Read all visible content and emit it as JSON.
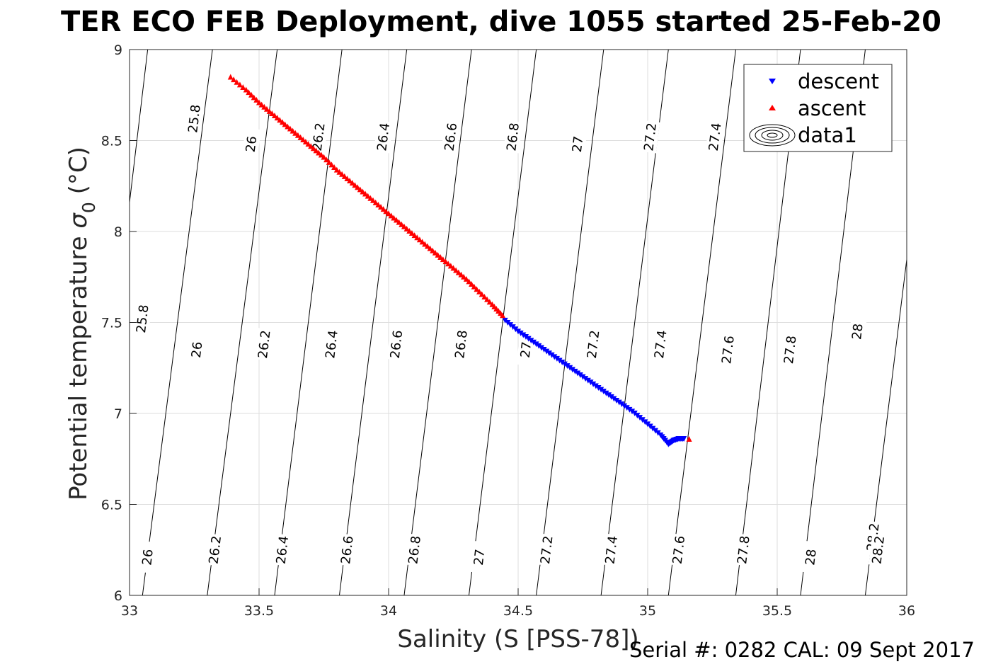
{
  "title": "TER ECO FEB Deployment, dive 1055 started 25-Feb-20",
  "footer": "Serial #: 0282  CAL: 09 Sept 2017",
  "chart_data": {
    "type": "scatter",
    "title": "TER ECO FEB Deployment, dive 1055 started 25-Feb-20",
    "xlabel": "Salinity (S [PSS-78])",
    "ylabel_main": "Potential temperature ",
    "ylabel_sigma": "σ",
    "ylabel_sub": "0",
    "ylabel_unit": " (°C)",
    "xlim": [
      33,
      36
    ],
    "ylim": [
      6,
      9
    ],
    "xticks": [
      "33",
      "33.5",
      "34",
      "34.5",
      "35",
      "35.5",
      "36"
    ],
    "yticks": [
      "6",
      "6.5",
      "7",
      "7.5",
      "8",
      "8.5",
      "9"
    ],
    "grid": true,
    "legend_position": "top-right",
    "colors": {
      "descent": "#0000ff",
      "ascent": "#ff0000",
      "contour": "#000000",
      "grid": "#dedede"
    },
    "series": [
      {
        "name": "descent",
        "marker": "triangle-down",
        "color": "#0000ff",
        "points": [
          [
            34.45,
            7.51
          ],
          [
            34.5,
            7.45
          ],
          [
            34.55,
            7.4
          ],
          [
            34.6,
            7.35
          ],
          [
            34.65,
            7.3
          ],
          [
            34.7,
            7.25
          ],
          [
            34.75,
            7.2
          ],
          [
            34.8,
            7.15
          ],
          [
            34.85,
            7.1
          ],
          [
            34.9,
            7.05
          ],
          [
            34.95,
            7.0
          ],
          [
            35.0,
            6.94
          ],
          [
            35.05,
            6.88
          ],
          [
            35.08,
            6.83
          ],
          [
            35.1,
            6.85
          ],
          [
            35.12,
            6.86
          ],
          [
            35.14,
            6.86
          ]
        ]
      },
      {
        "name": "ascent",
        "marker": "triangle-up",
        "color": "#ff0000",
        "points": [
          [
            33.39,
            8.85
          ],
          [
            33.45,
            8.78
          ],
          [
            33.5,
            8.71
          ],
          [
            33.55,
            8.65
          ],
          [
            33.6,
            8.59
          ],
          [
            33.65,
            8.53
          ],
          [
            33.7,
            8.47
          ],
          [
            33.75,
            8.41
          ],
          [
            33.8,
            8.34
          ],
          [
            33.85,
            8.28
          ],
          [
            33.9,
            8.22
          ],
          [
            33.95,
            8.16
          ],
          [
            34.0,
            8.1
          ],
          [
            34.05,
            8.04
          ],
          [
            34.1,
            7.98
          ],
          [
            34.15,
            7.92
          ],
          [
            34.2,
            7.86
          ],
          [
            34.25,
            7.8
          ],
          [
            34.3,
            7.74
          ],
          [
            34.35,
            7.67
          ],
          [
            34.4,
            7.6
          ],
          [
            34.44,
            7.54
          ],
          [
            35.16,
            6.86
          ]
        ]
      },
      {
        "name": "data1",
        "marker": "contour",
        "contours": [
          {
            "label": "25.8",
            "top": [
              33.07,
              9.0
            ],
            "bottom": [
              32.82,
              6.0
            ],
            "label_pos": [
              33.25,
              8.62
            ]
          },
          {
            "label": "26",
            "top": [
              33.32,
              9.0
            ],
            "bottom": [
              33.05,
              6.0
            ],
            "label_pos": [
              33.47,
              8.48
            ]
          },
          {
            "label": "26.2",
            "top": [
              33.57,
              9.0
            ],
            "bottom": [
              33.3,
              6.0
            ],
            "label_pos": [
              33.73,
              8.52
            ]
          },
          {
            "label": "26.4",
            "top": [
              33.82,
              9.0
            ],
            "bottom": [
              33.56,
              6.0
            ],
            "label_pos": [
              33.98,
              8.52
            ]
          },
          {
            "label": "26.6",
            "top": [
              34.07,
              9.0
            ],
            "bottom": [
              33.81,
              6.0
            ],
            "label_pos": [
              34.24,
              8.52
            ]
          },
          {
            "label": "26.8",
            "top": [
              34.32,
              9.0
            ],
            "bottom": [
              34.06,
              6.0
            ],
            "label_pos": [
              34.48,
              8.52
            ]
          },
          {
            "label": "27",
            "top": [
              34.57,
              9.0
            ],
            "bottom": [
              34.31,
              6.0
            ],
            "label_pos": [
              34.73,
              8.48
            ]
          },
          {
            "label": "27.2",
            "top": [
              34.83,
              9.0
            ],
            "bottom": [
              34.57,
              6.0
            ],
            "label_pos": [
              35.01,
              8.52
            ]
          },
          {
            "label": "27.4",
            "top": [
              35.08,
              9.0
            ],
            "bottom": [
              34.82,
              6.0
            ],
            "label_pos": [
              35.26,
              8.52
            ]
          },
          {
            "label": "27.6",
            "top": [
              35.34,
              9.0
            ],
            "bottom": [
              35.08,
              6.0
            ],
            "label_pos": [
              35.31,
              7.35
            ]
          },
          {
            "label": "27.8",
            "top": [
              35.59,
              9.0
            ],
            "bottom": [
              35.34,
              6.0
            ],
            "label_pos": [
              35.55,
              7.35
            ]
          },
          {
            "label": "28",
            "top": [
              35.84,
              9.0
            ],
            "bottom": [
              35.59,
              6.0
            ],
            "label_pos": [
              35.81,
              7.45
            ]
          },
          {
            "label": "28.2",
            "top": [
              36.1,
              9.0
            ],
            "bottom": [
              35.84,
              6.0
            ],
            "label_pos": [
              35.87,
              6.32
            ]
          }
        ],
        "extra_labels": [
          {
            "label": "25.8",
            "pos": [
              33.05,
              7.52
            ]
          },
          {
            "label": "26",
            "pos": [
              33.26,
              7.35
            ]
          },
          {
            "label": "26.2",
            "pos": [
              33.52,
              7.38
            ]
          },
          {
            "label": "26.4",
            "pos": [
              33.78,
              7.38
            ]
          },
          {
            "label": "26.6",
            "pos": [
              34.03,
              7.38
            ]
          },
          {
            "label": "26.8",
            "pos": [
              34.28,
              7.38
            ]
          },
          {
            "label": "27",
            "pos": [
              34.53,
              7.35
            ]
          },
          {
            "label": "27.2",
            "pos": [
              34.79,
              7.38
            ]
          },
          {
            "label": "27.4",
            "pos": [
              35.05,
              7.38
            ]
          },
          {
            "label": "26",
            "pos": [
              33.07,
              6.21
            ]
          },
          {
            "label": "26.2",
            "pos": [
              33.33,
              6.25
            ]
          },
          {
            "label": "26.4",
            "pos": [
              33.59,
              6.25
            ]
          },
          {
            "label": "26.6",
            "pos": [
              33.84,
              6.25
            ]
          },
          {
            "label": "26.8",
            "pos": [
              34.1,
              6.25
            ]
          },
          {
            "label": "27",
            "pos": [
              34.35,
              6.21
            ]
          },
          {
            "label": "27.2",
            "pos": [
              34.61,
              6.25
            ]
          },
          {
            "label": "27.4",
            "pos": [
              34.86,
              6.25
            ]
          },
          {
            "label": "27.6",
            "pos": [
              35.12,
              6.25
            ]
          },
          {
            "label": "27.8",
            "pos": [
              35.37,
              6.25
            ]
          },
          {
            "label": "28",
            "pos": [
              35.63,
              6.21
            ]
          },
          {
            "label": "28.2",
            "pos": [
              35.89,
              6.25
            ]
          }
        ]
      }
    ]
  }
}
